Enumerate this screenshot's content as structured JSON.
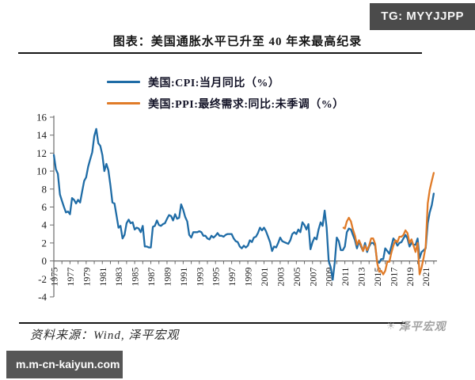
{
  "badges": {
    "top_right": "TG: MYYJJPP",
    "bottom_left": "m.m-cn-kaiyun.com"
  },
  "header": {
    "title": "图表：美国通胀水平已升至 40 年来最高纪录"
  },
  "legend": {
    "items": [
      {
        "label": "美国:CPI:当月同比（%）",
        "color": "#1F6CA6"
      },
      {
        "label": "美国:PPI:最终需求:同比:未季调（%）",
        "color": "#E07B28"
      }
    ]
  },
  "footer": {
    "source": "资料来源：Wind, 泽平宏观",
    "watermark": "泽平宏观",
    "watermark_icon": "sun-logo"
  },
  "chart_data": {
    "type": "line",
    "title": "图表：美国通胀水平已升至 40 年来最高纪录",
    "xlabel": "",
    "ylabel": "",
    "ylim": [
      -4,
      16
    ],
    "y_ticks": [
      16,
      14,
      12,
      10,
      8,
      6,
      4,
      2,
      0,
      -2,
      -4
    ],
    "xlim": [
      1975,
      2022.4
    ],
    "x_minor_tick_every_years": 1,
    "x_tick_labels": [
      "1975",
      "1977",
      "1979",
      "1981",
      "1983",
      "1985",
      "1987",
      "1989",
      "1991",
      "1993",
      "1995",
      "1997",
      "1999",
      "2001",
      "2003",
      "2005",
      "2007",
      "2009",
      "2011",
      "2013",
      "2015",
      "2017",
      "2019",
      "2021"
    ],
    "grid": false,
    "legend_position": "top",
    "axis_color": "#6b6b6b",
    "series": [
      {
        "name": "美国:CPI:当月同比（%）",
        "color": "#1F6CA6",
        "points": [
          [
            1975,
            11.8
          ],
          [
            1975.25,
            10.2
          ],
          [
            1975.5,
            9.7
          ],
          [
            1975.75,
            7.4
          ],
          [
            1976,
            6.7
          ],
          [
            1976.25,
            6.0
          ],
          [
            1976.5,
            5.4
          ],
          [
            1976.75,
            5.5
          ],
          [
            1977,
            5.2
          ],
          [
            1977.25,
            7.0
          ],
          [
            1977.5,
            6.8
          ],
          [
            1977.75,
            6.4
          ],
          [
            1978,
            6.8
          ],
          [
            1978.25,
            6.5
          ],
          [
            1978.5,
            7.7
          ],
          [
            1978.75,
            8.9
          ],
          [
            1979,
            9.3
          ],
          [
            1979.25,
            10.5
          ],
          [
            1979.5,
            11.3
          ],
          [
            1979.75,
            12.1
          ],
          [
            1980,
            13.9
          ],
          [
            1980.25,
            14.7
          ],
          [
            1980.5,
            13.1
          ],
          [
            1980.75,
            12.8
          ],
          [
            1981,
            11.8
          ],
          [
            1981.25,
            10.0
          ],
          [
            1981.5,
            10.8
          ],
          [
            1981.75,
            10.1
          ],
          [
            1982,
            8.4
          ],
          [
            1982.25,
            6.5
          ],
          [
            1982.5,
            6.4
          ],
          [
            1982.75,
            5.1
          ],
          [
            1983,
            3.7
          ],
          [
            1983.25,
            3.9
          ],
          [
            1983.5,
            2.5
          ],
          [
            1983.75,
            2.9
          ],
          [
            1984,
            4.2
          ],
          [
            1984.25,
            4.6
          ],
          [
            1984.5,
            4.2
          ],
          [
            1984.75,
            4.3
          ],
          [
            1985,
            3.5
          ],
          [
            1985.25,
            3.7
          ],
          [
            1985.5,
            3.6
          ],
          [
            1985.75,
            3.2
          ],
          [
            1986,
            3.9
          ],
          [
            1986.25,
            1.6
          ],
          [
            1986.5,
            1.6
          ],
          [
            1986.75,
            1.5
          ],
          [
            1987,
            1.5
          ],
          [
            1987.25,
            3.8
          ],
          [
            1987.5,
            3.9
          ],
          [
            1987.75,
            4.5
          ],
          [
            1988,
            4.0
          ],
          [
            1988.25,
            3.9
          ],
          [
            1988.5,
            4.1
          ],
          [
            1988.75,
            4.2
          ],
          [
            1989,
            4.7
          ],
          [
            1989.25,
            5.1
          ],
          [
            1989.5,
            5.0
          ],
          [
            1989.75,
            4.5
          ],
          [
            1990,
            5.2
          ],
          [
            1990.25,
            4.7
          ],
          [
            1990.5,
            4.8
          ],
          [
            1990.75,
            6.3
          ],
          [
            1991,
            5.7
          ],
          [
            1991.25,
            4.9
          ],
          [
            1991.5,
            4.4
          ],
          [
            1991.75,
            2.9
          ],
          [
            1992,
            2.6
          ],
          [
            1992.25,
            3.2
          ],
          [
            1992.5,
            3.2
          ],
          [
            1992.75,
            3.2
          ],
          [
            1993,
            3.3
          ],
          [
            1993.25,
            3.2
          ],
          [
            1993.5,
            2.8
          ],
          [
            1993.75,
            2.8
          ],
          [
            1994,
            2.5
          ],
          [
            1994.25,
            2.4
          ],
          [
            1994.5,
            2.8
          ],
          [
            1994.75,
            2.6
          ],
          [
            1995,
            2.8
          ],
          [
            1995.25,
            3.1
          ],
          [
            1995.5,
            2.8
          ],
          [
            1995.75,
            2.8
          ],
          [
            1996,
            2.7
          ],
          [
            1996.25,
            2.9
          ],
          [
            1996.5,
            3.0
          ],
          [
            1996.75,
            3.0
          ],
          [
            1997,
            3.0
          ],
          [
            1997.25,
            2.5
          ],
          [
            1997.5,
            2.2
          ],
          [
            1997.75,
            2.1
          ],
          [
            1998,
            1.6
          ],
          [
            1998.25,
            1.4
          ],
          [
            1998.5,
            1.7
          ],
          [
            1998.75,
            1.5
          ],
          [
            1999,
            1.7
          ],
          [
            1999.25,
            2.3
          ],
          [
            1999.5,
            2.1
          ],
          [
            1999.75,
            2.6
          ],
          [
            2000,
            2.7
          ],
          [
            2000.25,
            3.1
          ],
          [
            2000.5,
            3.7
          ],
          [
            2000.75,
            3.4
          ],
          [
            2001,
            3.7
          ],
          [
            2001.25,
            3.3
          ],
          [
            2001.5,
            2.7
          ],
          [
            2001.75,
            2.1
          ],
          [
            2002,
            1.1
          ],
          [
            2002.25,
            1.6
          ],
          [
            2002.5,
            1.5
          ],
          [
            2002.75,
            2.0
          ],
          [
            2003,
            2.6
          ],
          [
            2003.25,
            2.2
          ],
          [
            2003.5,
            2.1
          ],
          [
            2003.75,
            2.0
          ],
          [
            2004,
            1.9
          ],
          [
            2004.25,
            2.3
          ],
          [
            2004.5,
            3.0
          ],
          [
            2004.75,
            3.2
          ],
          [
            2005,
            3.0
          ],
          [
            2005.25,
            3.5
          ],
          [
            2005.5,
            3.2
          ],
          [
            2005.75,
            4.3
          ],
          [
            2006,
            4.0
          ],
          [
            2006.25,
            3.5
          ],
          [
            2006.5,
            4.1
          ],
          [
            2006.75,
            1.3
          ],
          [
            2007,
            2.1
          ],
          [
            2007.25,
            2.6
          ],
          [
            2007.5,
            2.4
          ],
          [
            2007.75,
            3.5
          ],
          [
            2008,
            4.3
          ],
          [
            2008.25,
            3.9
          ],
          [
            2008.5,
            5.6
          ],
          [
            2008.75,
            3.7
          ],
          [
            2009,
            0.0
          ],
          [
            2009.25,
            -0.7
          ],
          [
            2009.5,
            -2.1
          ],
          [
            2009.75,
            -0.2
          ],
          [
            2010,
            2.6
          ],
          [
            2010.25,
            2.2
          ],
          [
            2010.5,
            1.2
          ],
          [
            2010.75,
            1.2
          ],
          [
            2011,
            1.6
          ],
          [
            2011.25,
            3.2
          ],
          [
            2011.5,
            3.6
          ],
          [
            2011.75,
            3.5
          ],
          [
            2012,
            2.9
          ],
          [
            2012.25,
            2.3
          ],
          [
            2012.5,
            1.4
          ],
          [
            2012.75,
            2.2
          ],
          [
            2013,
            1.6
          ],
          [
            2013.25,
            1.1
          ],
          [
            2013.5,
            2.0
          ],
          [
            2013.75,
            1.0
          ],
          [
            2014,
            1.6
          ],
          [
            2014.25,
            2.0
          ],
          [
            2014.5,
            2.0
          ],
          [
            2014.75,
            1.7
          ],
          [
            2015,
            -0.1
          ],
          [
            2015.25,
            -0.2
          ],
          [
            2015.5,
            0.2
          ],
          [
            2015.75,
            0.2
          ],
          [
            2016,
            1.4
          ],
          [
            2016.25,
            1.1
          ],
          [
            2016.5,
            0.8
          ],
          [
            2016.75,
            1.6
          ],
          [
            2017,
            2.5
          ],
          [
            2017.25,
            2.2
          ],
          [
            2017.5,
            1.7
          ],
          [
            2017.75,
            2.0
          ],
          [
            2018,
            2.1
          ],
          [
            2018.25,
            2.5
          ],
          [
            2018.5,
            2.9
          ],
          [
            2018.75,
            2.5
          ],
          [
            2019,
            1.6
          ],
          [
            2019.25,
            2.0
          ],
          [
            2019.5,
            1.8
          ],
          [
            2019.75,
            1.8
          ],
          [
            2020,
            2.5
          ],
          [
            2020.25,
            0.3
          ],
          [
            2020.5,
            1.0
          ],
          [
            2020.75,
            1.2
          ],
          [
            2021,
            1.4
          ],
          [
            2021.25,
            4.2
          ],
          [
            2021.5,
            5.4
          ],
          [
            2021.75,
            6.2
          ],
          [
            2022,
            7.5
          ]
        ]
      },
      {
        "name": "美国:PPI:最终需求:同比:未季调（%）",
        "color": "#E07B28",
        "points": [
          [
            2010.83,
            3.7
          ],
          [
            2011,
            3.6
          ],
          [
            2011.25,
            4.4
          ],
          [
            2011.5,
            4.8
          ],
          [
            2011.75,
            4.4
          ],
          [
            2012,
            3.5
          ],
          [
            2012.25,
            2.8
          ],
          [
            2012.5,
            1.8
          ],
          [
            2012.75,
            2.3
          ],
          [
            2013,
            1.8
          ],
          [
            2013.25,
            1.1
          ],
          [
            2013.5,
            1.7
          ],
          [
            2013.75,
            1.2
          ],
          [
            2014,
            1.7
          ],
          [
            2014.25,
            2.5
          ],
          [
            2014.5,
            2.5
          ],
          [
            2014.75,
            1.9
          ],
          [
            2015,
            -0.2
          ],
          [
            2015.25,
            -1.2
          ],
          [
            2015.5,
            -1.1
          ],
          [
            2015.75,
            -1.5
          ],
          [
            2016,
            -1.1
          ],
          [
            2016.25,
            -0.1
          ],
          [
            2016.5,
            -0.1
          ],
          [
            2016.75,
            0.9
          ],
          [
            2017,
            1.7
          ],
          [
            2017.25,
            2.3
          ],
          [
            2017.5,
            2.1
          ],
          [
            2017.75,
            2.7
          ],
          [
            2018,
            2.7
          ],
          [
            2018.25,
            2.9
          ],
          [
            2018.5,
            3.4
          ],
          [
            2018.75,
            3.1
          ],
          [
            2019,
            2.0
          ],
          [
            2019.25,
            2.4
          ],
          [
            2019.5,
            1.7
          ],
          [
            2019.75,
            1.0
          ],
          [
            2020,
            2.0
          ],
          [
            2020.25,
            -1.5
          ],
          [
            2020.5,
            -0.7
          ],
          [
            2020.75,
            0.4
          ],
          [
            2021,
            1.6
          ],
          [
            2021.25,
            6.4
          ],
          [
            2021.5,
            7.9
          ],
          [
            2021.75,
            8.9
          ],
          [
            2022,
            9.8
          ]
        ]
      }
    ]
  }
}
